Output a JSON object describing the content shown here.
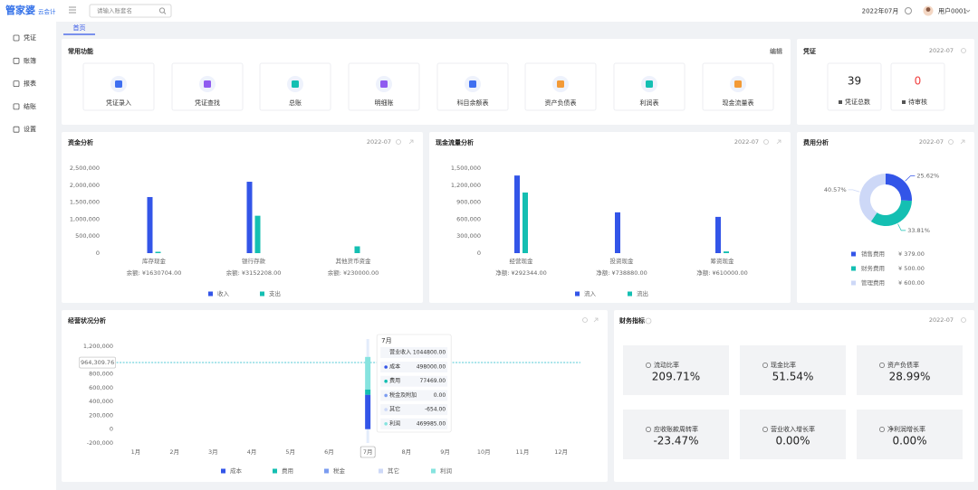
{
  "header": {
    "logo": "管家婆",
    "logo_sub": "云会计",
    "search_placeholder": "请输入账套名",
    "period": "2022年07月",
    "user": "用户0001"
  },
  "sidebar": [
    "凭证",
    "账簿",
    "报表",
    "结账",
    "设置"
  ],
  "tab": "首页",
  "shortcuts": {
    "title": "常用功能",
    "action": "编辑",
    "items": [
      "凭证录入",
      "凭证查找",
      "总账",
      "明细账",
      "科目余额表",
      "资产负债表",
      "利润表",
      "现金流量表"
    ]
  },
  "voucher": {
    "title": "凭证",
    "date": "2022-07",
    "stats": [
      {
        "value": 39,
        "label": "凭证总数"
      },
      {
        "value": 0,
        "label": "待审核"
      }
    ]
  },
  "indicators": {
    "title": "财务指标",
    "date": "2022-07",
    "items": [
      {
        "label": "流动比率",
        "value": "209.71%"
      },
      {
        "label": "现金比率",
        "value": "51.54%"
      },
      {
        "label": "资产负债率",
        "value": "28.99%"
      },
      {
        "label": "应收账款周转率",
        "value": "-23.47%"
      },
      {
        "label": "营业收入增长率",
        "value": "0.00%"
      },
      {
        "label": "净利润增长率",
        "value": "0.00%"
      }
    ]
  },
  "chart_data": [
    {
      "type": "bar",
      "title": "资金分析",
      "date": "2022-07",
      "categories": [
        "库存现金",
        "银行存款",
        "其他货币资金"
      ],
      "notes": [
        "余额: ¥1630704.00",
        "余额: ¥3152208.00",
        "余额: ¥230000.00"
      ],
      "series": [
        {
          "name": "收入",
          "color": "#3355e8",
          "values": [
            1650000,
            2100000,
            0
          ]
        },
        {
          "name": "支出",
          "color": "#14bfb2",
          "values": [
            40000,
            1100000,
            200000
          ]
        }
      ],
      "ylim": [
        0,
        2500000
      ],
      "yticks": [
        0,
        {
          "value": 500000,
          "label": "500,000"
        },
        {
          "value": 1000000,
          "label": "1,000,000"
        },
        {
          "value": 1500000,
          "label": "1,500,000"
        },
        {
          "value": 2000000,
          "label": "2,000,000"
        },
        {
          "value": 2500000,
          "label": "2,500,000"
        }
      ],
      "grid": false
    },
    {
      "type": "bar",
      "title": "现金流量分析",
      "date": "2022-07",
      "categories": [
        "经营现金",
        "投资现金",
        "筹资现金"
      ],
      "notes": [
        "净额: ¥292344.00",
        "净额: ¥738880.00",
        "净额: ¥610000.00"
      ],
      "series": [
        {
          "name": "流入",
          "color": "#3355e8",
          "values": [
            1370000,
            720000,
            640000
          ]
        },
        {
          "name": "流出",
          "color": "#14bfb2",
          "values": [
            1070000,
            0,
            30000
          ]
        }
      ],
      "ylim": [
        0,
        1500000
      ],
      "yticks": [
        0,
        {
          "value": 300000,
          "label": "300,000"
        },
        {
          "value": 600000,
          "label": "600,000"
        },
        {
          "value": 900000,
          "label": "900,000"
        },
        {
          "value": 1200000,
          "label": "1,200,000"
        },
        {
          "value": 1500000,
          "label": "1,500,000"
        }
      ],
      "grid": false
    },
    {
      "type": "pie",
      "title": "费用分析",
      "date": "2022-07",
      "categories": [
        "销售费用",
        "财务费用",
        "管理费用"
      ],
      "values": [
        25.62,
        33.81,
        40.57
      ],
      "value_labels": [
        "25.62%",
        "33.81%",
        "40.57%"
      ],
      "amount_labels": [
        "¥ 379.00",
        "¥ 500.00",
        "¥ 600.00"
      ],
      "colors": [
        "#3355e8",
        "#14bfb2",
        "#cdd8f7"
      ]
    },
    {
      "type": "stacked_bar",
      "title": "经营状况分析",
      "categories": [
        "1月",
        "2月",
        "3月",
        "4月",
        "5月",
        "6月",
        "7月",
        "8月",
        "9月",
        "10月",
        "11月",
        "12月"
      ],
      "series": [
        {
          "name": "成本",
          "color": "#3355e8",
          "values": [
            null,
            null,
            null,
            null,
            null,
            null,
            498000,
            null,
            null,
            null,
            null,
            null
          ],
          "value_labels": [
            null,
            null,
            null,
            null,
            null,
            null,
            "498000.00",
            null,
            null,
            null,
            null,
            null
          ]
        },
        {
          "name": "费用",
          "color": "#14bfb2",
          "values": [
            null,
            null,
            null,
            null,
            null,
            null,
            77469,
            null,
            null,
            null,
            null,
            null
          ],
          "value_labels": [
            null,
            null,
            null,
            null,
            null,
            null,
            "77469.00",
            null,
            null,
            null,
            null,
            null
          ]
        },
        {
          "name": "税金",
          "color": "#7b9cf0",
          "values": [
            null,
            null,
            null,
            null,
            null,
            null,
            0,
            null,
            null,
            null,
            null,
            null
          ],
          "value_labels": [
            null,
            null,
            null,
            null,
            null,
            null,
            "0.00",
            null,
            null,
            null,
            null,
            null
          ]
        },
        {
          "name": "其它",
          "color": "#cdd8f7",
          "values": [
            null,
            null,
            null,
            null,
            null,
            null,
            -654,
            null,
            null,
            null,
            null,
            null
          ],
          "value_labels": [
            null,
            null,
            null,
            null,
            null,
            null,
            "-654.00",
            null,
            null,
            null,
            null,
            null
          ]
        },
        {
          "name": "利润",
          "color": "#86e3df",
          "values": [
            null,
            null,
            null,
            null,
            null,
            null,
            469985,
            null,
            null,
            null,
            null,
            null
          ],
          "value_labels": [
            null,
            null,
            null,
            null,
            null,
            null,
            "469985.00",
            null,
            null,
            null,
            null,
            null
          ]
        }
      ],
      "ylim": [
        -200000,
        1200000
      ],
      "yticks": [
        {
          "value": -200000,
          "label": "-200,000"
        },
        0,
        {
          "value": 200000,
          "label": "200,000"
        },
        {
          "value": 400000,
          "label": "400,000"
        },
        {
          "value": 600000,
          "label": "600,000"
        },
        {
          "value": 800000,
          "label": "800,000"
        },
        {
          "value": 1000000,
          "label": "1,000,000"
        },
        {
          "value": 1200000,
          "label": "1,200,000"
        }
      ],
      "grid": false,
      "reference_line": {
        "value": 964309.76,
        "label": "964,309.76",
        "color": "#4fc9d6"
      },
      "tooltip": {
        "revenue_name": "营业收入",
        "revenue": 1044800,
        "revenue_label": "1044800.00",
        "series_names": [
          "成本",
          "费用",
          "税金及附加",
          "其它",
          "利润"
        ]
      }
    }
  ]
}
